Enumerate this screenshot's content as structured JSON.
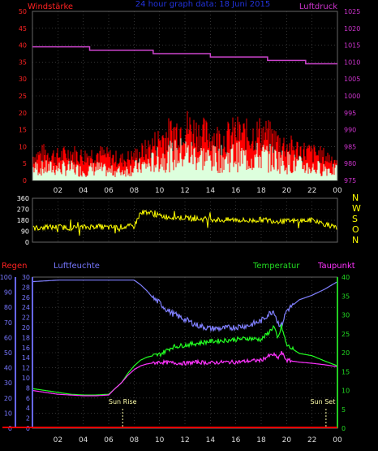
{
  "header": {
    "left": "Windstärke",
    "center": "24 hour graph data: 18 Juni 2015",
    "right": "Luftdruck"
  },
  "chart_data": [
    {
      "type": "line",
      "panel": "top",
      "x_ticks": [
        "02",
        "04",
        "06",
        "08",
        "10",
        "12",
        "14",
        "16",
        "18",
        "20",
        "22",
        "00"
      ],
      "left_axis": {
        "label": "Windstärke",
        "ylim": [
          0,
          50
        ],
        "ticks": [
          0,
          5,
          10,
          15,
          20,
          25,
          30,
          35,
          40,
          45,
          50
        ],
        "color": "#ff2222"
      },
      "right_axis": {
        "label": "Luftdruck",
        "ylim": [
          975,
          1025
        ],
        "ticks": [
          975,
          980,
          985,
          990,
          995,
          1000,
          1005,
          1010,
          1015,
          1020,
          1025
        ],
        "color": "#cc33cc"
      },
      "series": [
        {
          "name": "Luftdruck",
          "axis": "right",
          "color": "#cc44cc",
          "x": [
            0,
            4.5,
            4.5,
            9.5,
            9.5,
            14,
            14,
            18.5,
            18.5,
            21.5,
            21.5,
            24
          ],
          "values": [
            1014.5,
            1014.5,
            1013.5,
            1013.5,
            1012.5,
            1012.5,
            1011.5,
            1011.5,
            1010.5,
            1010.5,
            1009.5,
            1009.5
          ]
        },
        {
          "name": "Windböen",
          "axis": "left",
          "color": "#ff0000",
          "x": [
            0,
            1,
            2,
            3,
            4,
            5,
            6,
            7,
            8,
            9,
            10,
            11,
            12,
            13,
            14,
            15,
            16,
            17,
            18,
            19,
            20,
            21,
            22,
            23,
            24
          ],
          "values": [
            7,
            8,
            7,
            8,
            7,
            8,
            7,
            6,
            7,
            9,
            12,
            14,
            16,
            14,
            13,
            12,
            14,
            13,
            14,
            12,
            10,
            9,
            8,
            7,
            6
          ]
        },
        {
          "name": "Windstärke",
          "axis": "left",
          "color": "#ddffdd",
          "x": [
            0,
            1,
            2,
            3,
            4,
            5,
            6,
            7,
            8,
            9,
            10,
            11,
            12,
            13,
            14,
            15,
            16,
            17,
            18,
            19,
            20,
            21,
            22,
            23,
            24
          ],
          "values": [
            4,
            4,
            4,
            4,
            3,
            4,
            3,
            3,
            4,
            5,
            7,
            8,
            9,
            8,
            7,
            7,
            8,
            7,
            8,
            7,
            6,
            5,
            4,
            4,
            3
          ]
        }
      ]
    },
    {
      "type": "line",
      "panel": "middle",
      "left_axis": {
        "label": "",
        "ylim": [
          0,
          360
        ],
        "ticks": [
          0,
          90,
          180,
          270,
          360
        ],
        "color": "#ffffff"
      },
      "right_axis": {
        "labels": [
          "N",
          "W",
          "S",
          "O",
          "N"
        ],
        "color": "#ffff00"
      },
      "series": [
        {
          "name": "Windrichtung",
          "color": "#ffff00",
          "x": [
            0,
            1,
            2,
            3,
            4,
            5,
            6,
            7,
            8,
            8.5,
            9,
            10,
            11,
            12,
            13,
            14,
            15,
            16,
            17,
            18,
            19,
            20,
            21,
            22,
            23,
            24
          ],
          "values": [
            115,
            120,
            125,
            118,
            122,
            130,
            120,
            125,
            130,
            240,
            250,
            215,
            205,
            200,
            190,
            190,
            180,
            185,
            175,
            185,
            175,
            170,
            175,
            180,
            150,
            110
          ]
        }
      ]
    },
    {
      "type": "line",
      "panel": "bottom",
      "x_ticks": [
        "02",
        "04",
        "06",
        "08",
        "10",
        "12",
        "14",
        "16",
        "18",
        "20",
        "22",
        "00"
      ],
      "labels": {
        "regen": "Regen",
        "luftfeuchte": "Luftfeuchte",
        "temperatur": "Temperatur",
        "taupunkt": "Taupunkt"
      },
      "annotations": {
        "sunrise": "Sun Rise",
        "sunset": "Sun Set",
        "sunrise_x": 7.1,
        "sunset_x": 23.1
      },
      "axis_regen": {
        "ylim": [
          0,
          100
        ],
        "ticks": [
          0,
          10,
          20,
          30,
          40,
          50,
          60,
          70,
          80,
          90,
          100
        ],
        "color": "#ff3333"
      },
      "axis_luftfeuchte": {
        "ylim": [
          0,
          30
        ],
        "ticks": [
          0,
          2,
          4,
          6,
          8,
          10,
          12,
          14,
          16,
          18,
          20,
          22,
          24,
          26,
          28,
          30
        ],
        "color": "#7777ff"
      },
      "axis_temperatur": {
        "ylim": [
          0,
          40
        ],
        "ticks": [
          0,
          5,
          10,
          15,
          20,
          25,
          30,
          35,
          40
        ],
        "color": "#22cc22"
      },
      "series": [
        {
          "name": "Luftfeuchte",
          "color": "#8080ff",
          "x": [
            0,
            1,
            2,
            3,
            4,
            5,
            6,
            7,
            8,
            8.5,
            9,
            9.5,
            10,
            10.5,
            11,
            11.5,
            12,
            13,
            14,
            15,
            16,
            17,
            18,
            18.5,
            19,
            19.3,
            19.6,
            20,
            21,
            22,
            23,
            24
          ],
          "values": [
            97,
            97.5,
            98,
            98,
            98,
            98,
            98,
            98,
            98,
            95,
            91,
            86,
            83,
            79,
            76,
            74,
            72,
            68,
            66,
            66,
            67,
            68,
            71,
            75,
            78,
            70,
            68,
            78,
            85,
            88,
            92,
            97
          ]
        },
        {
          "name": "Temperatur",
          "color": "#22ff22",
          "x": [
            0,
            1,
            2,
            3,
            4,
            5,
            6,
            6.5,
            7,
            7.5,
            8,
            8.5,
            9,
            9.5,
            10,
            11,
            12,
            13,
            14,
            15,
            16,
            17,
            18,
            18.5,
            19,
            19.3,
            19.6,
            20,
            21,
            22,
            23,
            24
          ],
          "values": [
            10.5,
            10,
            9.5,
            9,
            8.8,
            8.8,
            9,
            10.5,
            12,
            14.5,
            16.5,
            18,
            18.8,
            19.2,
            19.5,
            21.5,
            22,
            22.5,
            23,
            23.2,
            23.5,
            23.8,
            23.5,
            25,
            27,
            23.5,
            27,
            22,
            19.8,
            19.2,
            17.8,
            16.5
          ]
        },
        {
          "name": "Taupunkt",
          "color": "#ff33ff",
          "x": [
            0,
            1,
            2,
            3,
            4,
            5,
            6,
            6.5,
            7,
            7.5,
            8,
            8.5,
            9,
            9.5,
            10,
            11,
            12,
            13,
            14,
            15,
            16,
            17,
            18,
            18.5,
            19,
            19.3,
            19.6,
            20,
            21,
            22,
            23,
            24
          ],
          "values": [
            10,
            9.5,
            9,
            8.8,
            8.6,
            8.6,
            8.8,
            10.5,
            12,
            14,
            15.5,
            16.5,
            17,
            17.3,
            17.5,
            17.3,
            17.2,
            17.5,
            17.3,
            17.5,
            17.5,
            17.8,
            18,
            19,
            19.5,
            18.5,
            20,
            18,
            17.5,
            17.2,
            16.8,
            16.3
          ]
        },
        {
          "name": "Regen",
          "color": "#ff0000",
          "x": [
            0,
            24
          ],
          "values": [
            0,
            0
          ]
        }
      ]
    }
  ]
}
